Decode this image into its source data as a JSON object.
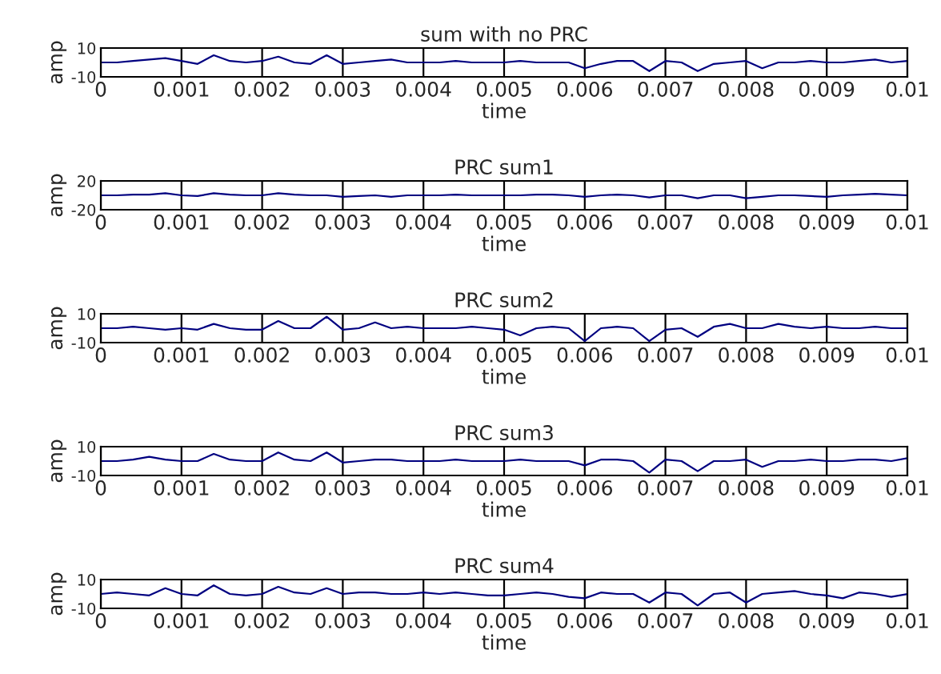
{
  "chart_data": [
    {
      "type": "line",
      "title": "sum with no PRC",
      "xlabel": "time",
      "ylabel": "amp",
      "grid": "x",
      "xlim": [
        0,
        0.01
      ],
      "xticks": [
        0,
        0.001,
        0.002,
        0.003,
        0.004,
        0.005,
        0.006,
        0.007,
        0.008,
        0.009,
        0.01
      ],
      "ylim": [
        -10,
        10
      ],
      "yticks": [
        -10,
        10
      ],
      "x": [
        0,
        0.0002,
        0.0004,
        0.0006,
        0.0008,
        0.001,
        0.0012,
        0.0014,
        0.0016,
        0.0018,
        0.002,
        0.0022,
        0.0024,
        0.0026,
        0.0028,
        0.003,
        0.0032,
        0.0034,
        0.0036,
        0.0038,
        0.004,
        0.0042,
        0.0044,
        0.0046,
        0.0048,
        0.005,
        0.0052,
        0.0054,
        0.0056,
        0.0058,
        0.006,
        0.0062,
        0.0064,
        0.0066,
        0.0068,
        0.007,
        0.0072,
        0.0074,
        0.0076,
        0.0078,
        0.008,
        0.0082,
        0.0084,
        0.0086,
        0.0088,
        0.009,
        0.0092,
        0.0094,
        0.0096,
        0.0098,
        0.01
      ],
      "series": [
        {
          "color": "#000080",
          "values": [
            0,
            0,
            1,
            2,
            3,
            1,
            -1,
            5,
            1,
            0,
            1,
            4,
            0,
            -1,
            5,
            -1,
            0,
            1,
            2,
            0,
            0,
            0,
            1,
            0,
            0,
            0,
            1,
            0,
            0,
            0,
            -4,
            -1,
            1,
            1,
            -6,
            1,
            0,
            -6,
            -1,
            0,
            1,
            -4,
            0,
            0,
            1,
            0,
            0,
            1,
            2,
            0,
            1
          ]
        }
      ]
    },
    {
      "type": "line",
      "title": "PRC sum1",
      "xlabel": "time",
      "ylabel": "amp",
      "grid": "x",
      "xlim": [
        0,
        0.01
      ],
      "xticks": [
        0,
        0.001,
        0.002,
        0.003,
        0.004,
        0.005,
        0.006,
        0.007,
        0.008,
        0.009,
        0.01
      ],
      "ylim": [
        -20,
        20
      ],
      "yticks": [
        -20,
        20
      ],
      "x": [
        0,
        0.0002,
        0.0004,
        0.0006,
        0.0008,
        0.001,
        0.0012,
        0.0014,
        0.0016,
        0.0018,
        0.002,
        0.0022,
        0.0024,
        0.0026,
        0.0028,
        0.003,
        0.0032,
        0.0034,
        0.0036,
        0.0038,
        0.004,
        0.0042,
        0.0044,
        0.0046,
        0.0048,
        0.005,
        0.0052,
        0.0054,
        0.0056,
        0.0058,
        0.006,
        0.0062,
        0.0064,
        0.0066,
        0.0068,
        0.007,
        0.0072,
        0.0074,
        0.0076,
        0.0078,
        0.008,
        0.0082,
        0.0084,
        0.0086,
        0.0088,
        0.009,
        0.0092,
        0.0094,
        0.0096,
        0.0098,
        0.01
      ],
      "series": [
        {
          "color": "#000080",
          "values": [
            0,
            0,
            1,
            1,
            3,
            0,
            -1,
            3,
            1,
            0,
            0,
            3,
            1,
            0,
            0,
            -2,
            -1,
            0,
            -2,
            0,
            0,
            0,
            1,
            0,
            0,
            0,
            0,
            1,
            1,
            0,
            -2,
            0,
            1,
            0,
            -3,
            0,
            0,
            -4,
            0,
            0,
            -4,
            -2,
            0,
            0,
            -1,
            -2,
            0,
            1,
            2,
            1,
            0
          ]
        }
      ]
    },
    {
      "type": "line",
      "title": "PRC sum2",
      "xlabel": "time",
      "ylabel": "amp",
      "grid": "x",
      "xlim": [
        0,
        0.01
      ],
      "xticks": [
        0,
        0.001,
        0.002,
        0.003,
        0.004,
        0.005,
        0.006,
        0.007,
        0.008,
        0.009,
        0.01
      ],
      "ylim": [
        -10,
        10
      ],
      "yticks": [
        -10,
        10
      ],
      "x": [
        0,
        0.0002,
        0.0004,
        0.0006,
        0.0008,
        0.001,
        0.0012,
        0.0014,
        0.0016,
        0.0018,
        0.002,
        0.0022,
        0.0024,
        0.0026,
        0.0028,
        0.003,
        0.0032,
        0.0034,
        0.0036,
        0.0038,
        0.004,
        0.0042,
        0.0044,
        0.0046,
        0.0048,
        0.005,
        0.0052,
        0.0054,
        0.0056,
        0.0058,
        0.006,
        0.0062,
        0.0064,
        0.0066,
        0.0068,
        0.007,
        0.0072,
        0.0074,
        0.0076,
        0.0078,
        0.008,
        0.0082,
        0.0084,
        0.0086,
        0.0088,
        0.009,
        0.0092,
        0.0094,
        0.0096,
        0.0098,
        0.01
      ],
      "series": [
        {
          "color": "#000080",
          "values": [
            0,
            0,
            1,
            0,
            -1,
            0,
            -1,
            3,
            0,
            -1,
            -1,
            5,
            0,
            0,
            8,
            -1,
            0,
            4,
            0,
            1,
            0,
            0,
            0,
            1,
            0,
            -1,
            -5,
            0,
            1,
            0,
            -9,
            0,
            1,
            0,
            -9,
            -1,
            0,
            -6,
            1,
            3,
            0,
            0,
            3,
            1,
            0,
            1,
            0,
            0,
            1,
            0,
            0
          ]
        }
      ]
    },
    {
      "type": "line",
      "title": "PRC sum3",
      "xlabel": "time",
      "ylabel": "amp",
      "grid": "x",
      "xlim": [
        0,
        0.01
      ],
      "xticks": [
        0,
        0.001,
        0.002,
        0.003,
        0.004,
        0.005,
        0.006,
        0.007,
        0.008,
        0.009,
        0.01
      ],
      "ylim": [
        -10,
        10
      ],
      "yticks": [
        -10,
        10
      ],
      "x": [
        0,
        0.0002,
        0.0004,
        0.0006,
        0.0008,
        0.001,
        0.0012,
        0.0014,
        0.0016,
        0.0018,
        0.002,
        0.0022,
        0.0024,
        0.0026,
        0.0028,
        0.003,
        0.0032,
        0.0034,
        0.0036,
        0.0038,
        0.004,
        0.0042,
        0.0044,
        0.0046,
        0.0048,
        0.005,
        0.0052,
        0.0054,
        0.0056,
        0.0058,
        0.006,
        0.0062,
        0.0064,
        0.0066,
        0.0068,
        0.007,
        0.0072,
        0.0074,
        0.0076,
        0.0078,
        0.008,
        0.0082,
        0.0084,
        0.0086,
        0.0088,
        0.009,
        0.0092,
        0.0094,
        0.0096,
        0.0098,
        0.01
      ],
      "series": [
        {
          "color": "#000080",
          "values": [
            0,
            0,
            1,
            3,
            1,
            0,
            0,
            5,
            1,
            0,
            0,
            6,
            1,
            0,
            6,
            -1,
            0,
            1,
            1,
            0,
            0,
            0,
            1,
            0,
            0,
            0,
            1,
            0,
            0,
            0,
            -3,
            1,
            1,
            0,
            -8,
            1,
            0,
            -7,
            0,
            0,
            1,
            -4,
            0,
            0,
            1,
            0,
            0,
            1,
            1,
            0,
            2
          ]
        }
      ]
    },
    {
      "type": "line",
      "title": "PRC sum4",
      "xlabel": "time",
      "ylabel": "amp",
      "grid": "x",
      "xlim": [
        0,
        0.01
      ],
      "xticks": [
        0,
        0.001,
        0.002,
        0.003,
        0.004,
        0.005,
        0.006,
        0.007,
        0.008,
        0.009,
        0.01
      ],
      "ylim": [
        -10,
        10
      ],
      "yticks": [
        -10,
        10
      ],
      "x": [
        0,
        0.0002,
        0.0004,
        0.0006,
        0.0008,
        0.001,
        0.0012,
        0.0014,
        0.0016,
        0.0018,
        0.002,
        0.0022,
        0.0024,
        0.0026,
        0.0028,
        0.003,
        0.0032,
        0.0034,
        0.0036,
        0.0038,
        0.004,
        0.0042,
        0.0044,
        0.0046,
        0.0048,
        0.005,
        0.0052,
        0.0054,
        0.0056,
        0.0058,
        0.006,
        0.0062,
        0.0064,
        0.0066,
        0.0068,
        0.007,
        0.0072,
        0.0074,
        0.0076,
        0.0078,
        0.008,
        0.0082,
        0.0084,
        0.0086,
        0.0088,
        0.009,
        0.0092,
        0.0094,
        0.0096,
        0.0098,
        0.01
      ],
      "series": [
        {
          "color": "#000080",
          "values": [
            0,
            1,
            0,
            -1,
            4,
            0,
            -1,
            6,
            0,
            -1,
            0,
            5,
            1,
            0,
            4,
            0,
            1,
            1,
            0,
            0,
            1,
            0,
            1,
            0,
            -1,
            -1,
            0,
            1,
            0,
            -2,
            -3,
            1,
            0,
            0,
            -6,
            1,
            0,
            -8,
            0,
            1,
            -6,
            0,
            1,
            2,
            0,
            -1,
            -3,
            1,
            0,
            -2,
            0
          ]
        }
      ]
    }
  ]
}
